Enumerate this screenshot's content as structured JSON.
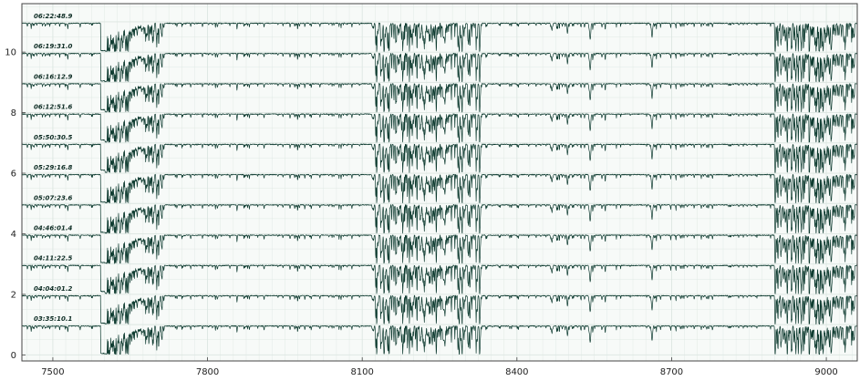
{
  "colors": {
    "background": "#f7faf8",
    "grid": "#dce6e1",
    "spectrum": "#0e3b30",
    "frame": "#444444",
    "label": "#0b2a22"
  },
  "chart_data": {
    "type": "line",
    "title": "",
    "xlabel": "",
    "ylabel": "",
    "xlim": [
      7440,
      9060
    ],
    "ylim": [
      -0.2,
      11.6
    ],
    "xticks": [
      7500,
      7800,
      8100,
      8400,
      8700,
      9000
    ],
    "yticks": [
      0,
      2,
      4,
      6,
      8,
      10
    ],
    "grid": true,
    "series": [
      {
        "name": "03:35:10.1",
        "offset": 0,
        "o2_depth": 0.95
      },
      {
        "name": "04:04:01.2",
        "offset": 1,
        "o2_depth": 0.95
      },
      {
        "name": "04:11:22.5",
        "offset": 2,
        "o2_depth": 0.9
      },
      {
        "name": "04:46:01.4",
        "offset": 3,
        "o2_depth": 0.95
      },
      {
        "name": "05:07:23.6",
        "offset": 4,
        "o2_depth": 0.95
      },
      {
        "name": "05:29:16.8",
        "offset": 5,
        "o2_depth": 0.95
      },
      {
        "name": "05:50:30.5",
        "offset": 6,
        "o2_depth": 0.9
      },
      {
        "name": "06:12:51.6",
        "offset": 7,
        "o2_depth": 0.9
      },
      {
        "name": "06:16:12.9",
        "offset": 8,
        "o2_depth": 0.9
      },
      {
        "name": "06:19:31.0",
        "offset": 9,
        "o2_depth": 0.95
      },
      {
        "name": "06:22:48.9",
        "offset": 10,
        "o2_depth": 0.95
      }
    ]
  }
}
